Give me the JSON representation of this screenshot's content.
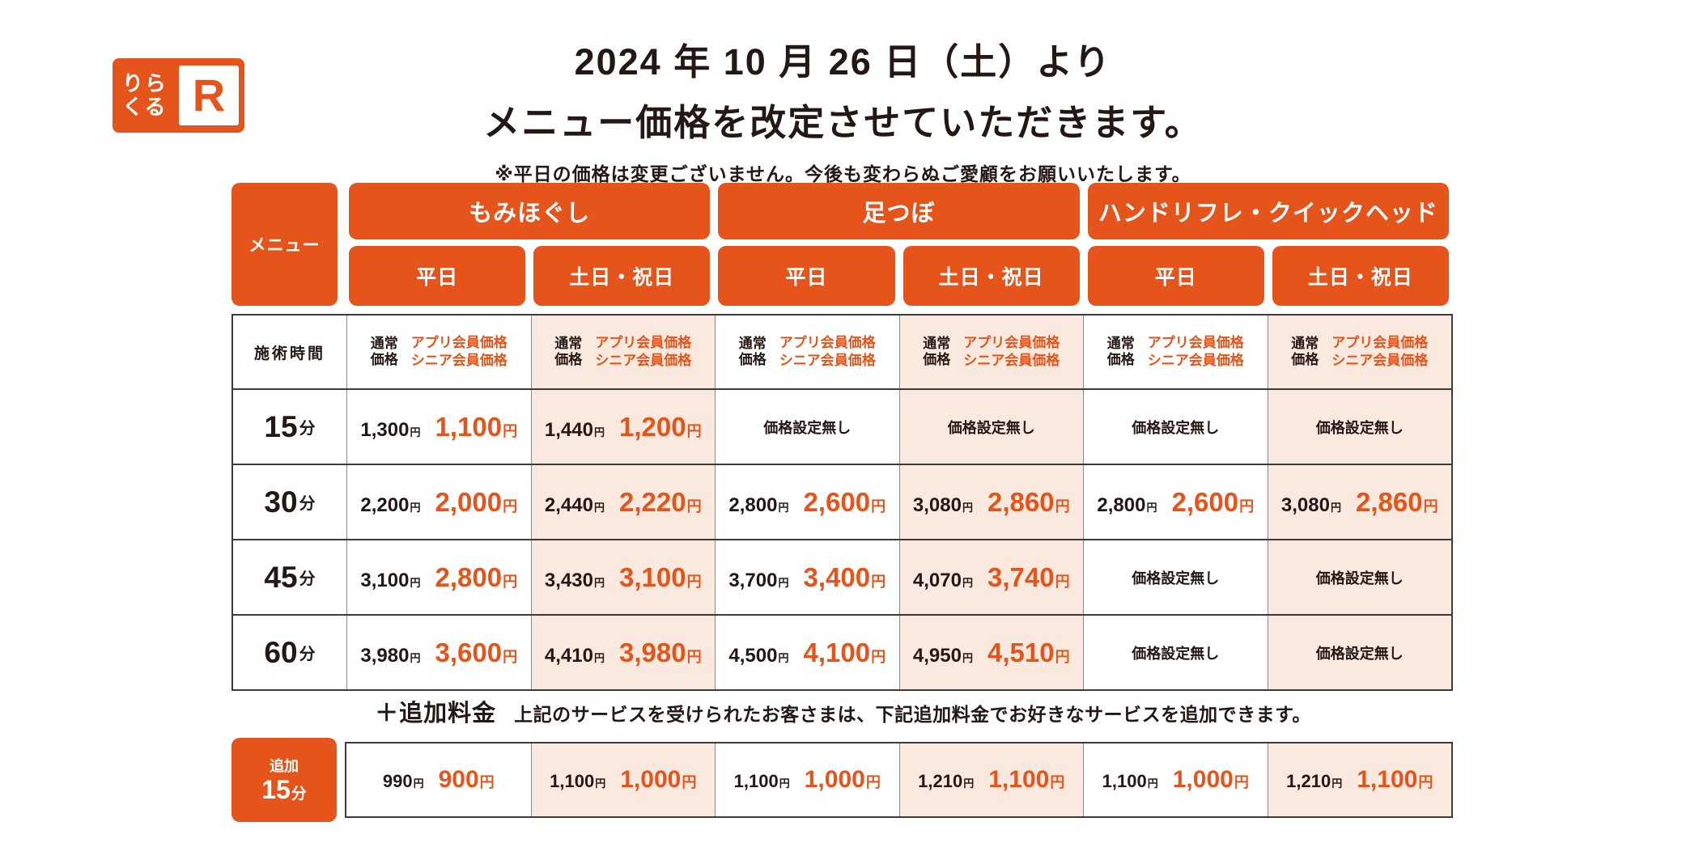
{
  "colors": {
    "accent": "#E5541B",
    "peach_bg": "#FAE9DE",
    "text_dark": "#231815",
    "border_dark": "#3E3A39",
    "border_light": "#8C8A89"
  },
  "logo": {
    "text_top": "りら",
    "text_bottom": "くる",
    "mark": "R"
  },
  "title": {
    "line1": "2024 年 10 月 26 日（土）より",
    "line2": "メニュー価格を改定させていただきます。",
    "note": "※平日の価格は変更ございません。今後も変わらぬご愛顧をお願いいたします。"
  },
  "menu_header": {
    "corner_label": "メニュー",
    "categories": [
      {
        "label": "もみほぐし",
        "days": [
          "平日",
          "土日・祝日"
        ]
      },
      {
        "label": "足つぼ",
        "days": [
          "平日",
          "土日・祝日"
        ]
      },
      {
        "label": "ハンドリフレ・クイックヘッド",
        "days": [
          "平日",
          "土日・祝日"
        ]
      }
    ]
  },
  "price_table": {
    "time_header": "施術時間",
    "col_header": {
      "normal_lines": [
        "通常",
        "価格"
      ],
      "member_lines": [
        "アプリ会員価格",
        "シニア会員価格"
      ]
    },
    "no_price_label": "価格設定無し",
    "yen": "円",
    "rows": [
      {
        "time": "15",
        "unit": "分",
        "cells": [
          {
            "normal": "1,300",
            "member": "1,100"
          },
          {
            "normal": "1,440",
            "member": "1,200"
          },
          null,
          null,
          null,
          null
        ]
      },
      {
        "time": "30",
        "unit": "分",
        "cells": [
          {
            "normal": "2,200",
            "member": "2,000"
          },
          {
            "normal": "2,440",
            "member": "2,220"
          },
          {
            "normal": "2,800",
            "member": "2,600"
          },
          {
            "normal": "3,080",
            "member": "2,860"
          },
          {
            "normal": "2,800",
            "member": "2,600"
          },
          {
            "normal": "3,080",
            "member": "2,860"
          }
        ]
      },
      {
        "time": "45",
        "unit": "分",
        "cells": [
          {
            "normal": "3,100",
            "member": "2,800"
          },
          {
            "normal": "3,430",
            "member": "3,100"
          },
          {
            "normal": "3,700",
            "member": "3,400"
          },
          {
            "normal": "4,070",
            "member": "3,740"
          },
          null,
          null
        ]
      },
      {
        "time": "60",
        "unit": "分",
        "cells": [
          {
            "normal": "3,980",
            "member": "3,600"
          },
          {
            "normal": "4,410",
            "member": "3,980"
          },
          {
            "normal": "4,500",
            "member": "4,100"
          },
          {
            "normal": "4,950",
            "member": "4,510"
          },
          null,
          null
        ]
      }
    ]
  },
  "addon": {
    "heading": "＋追加料金",
    "description": "上記のサービスを受けられたお客さまは、下記追加料金でお好きなサービスを追加できます。",
    "row_label_top": "追加",
    "row_label_time": "15",
    "row_label_unit": "分",
    "cells": [
      {
        "normal": "990",
        "member": "900"
      },
      {
        "normal": "1,100",
        "member": "1,000"
      },
      {
        "normal": "1,100",
        "member": "1,000"
      },
      {
        "normal": "1,210",
        "member": "1,100"
      },
      {
        "normal": "1,100",
        "member": "1,000"
      },
      {
        "normal": "1,210",
        "member": "1,100"
      }
    ]
  }
}
